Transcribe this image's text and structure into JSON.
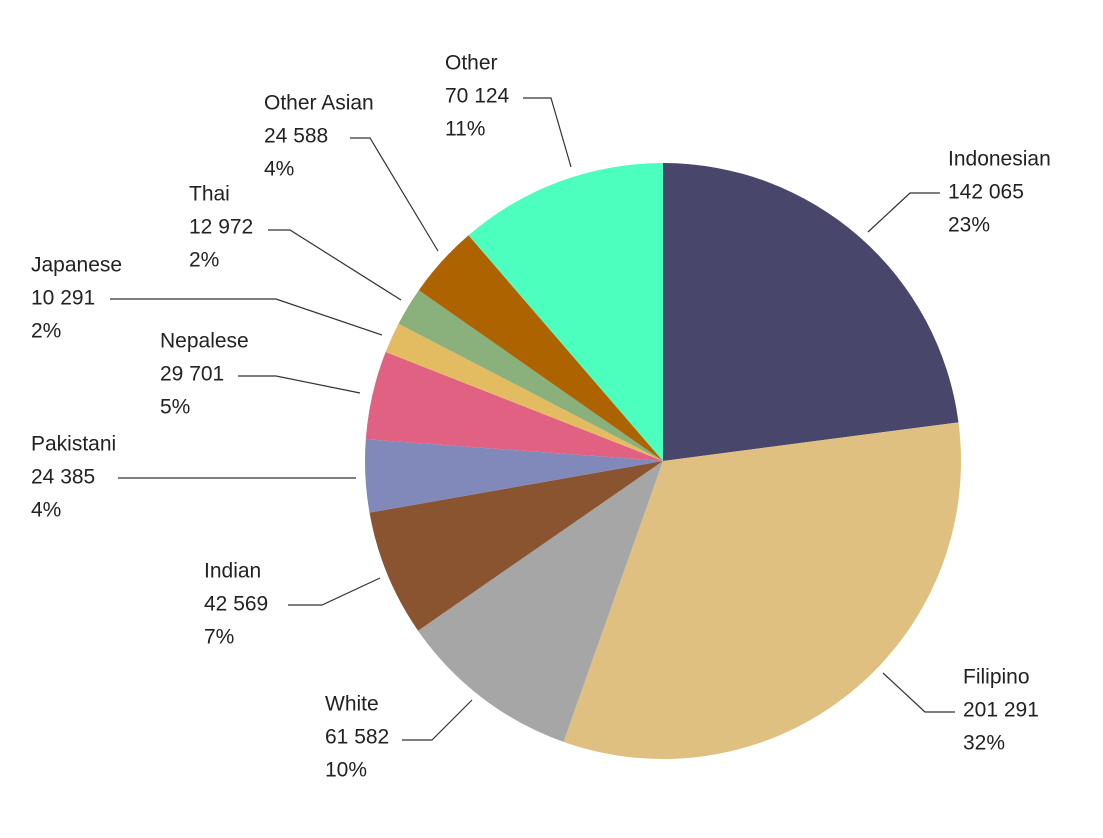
{
  "chart_data": {
    "type": "pie",
    "title": "",
    "start_angle_deg": 0,
    "direction": "clockwise",
    "slices": [
      {
        "label": "Indonesian",
        "value": 142065,
        "value_text": "142 065",
        "percent_text": "23%",
        "color": "#48476b"
      },
      {
        "label": "Filipino",
        "value": 201291,
        "value_text": "201 291",
        "percent_text": "32%",
        "color": "#dfc080"
      },
      {
        "label": "White",
        "value": 61582,
        "value_text": "61 582",
        "percent_text": "10%",
        "color": "#a6a6a6"
      },
      {
        "label": "Indian",
        "value": 42569,
        "value_text": "42 569",
        "percent_text": "7%",
        "color": "#8a5431"
      },
      {
        "label": "Pakistani",
        "value": 24385,
        "value_text": "24 385",
        "percent_text": "4%",
        "color": "#8089ba"
      },
      {
        "label": "Nepalese",
        "value": 29701,
        "value_text": "29 701",
        "percent_text": "5%",
        "color": "#e06181"
      },
      {
        "label": "Japanese",
        "value": 10291,
        "value_text": "10 291",
        "percent_text": "2%",
        "color": "#e3bc62"
      },
      {
        "label": "Thai",
        "value": 12972,
        "value_text": "12 972",
        "percent_text": "2%",
        "color": "#8ab07c"
      },
      {
        "label": "Other Asian",
        "value": 24588,
        "value_text": "24 588",
        "percent_text": "4%",
        "color": "#ad6300"
      },
      {
        "label": "Other",
        "value": 70124,
        "value_text": "70 124",
        "percent_text": "11%",
        "color": "#4dffbe"
      }
    ]
  }
}
